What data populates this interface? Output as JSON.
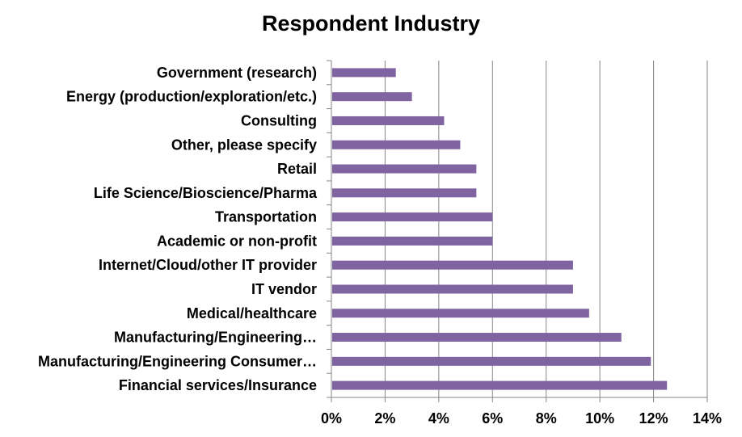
{
  "chart_data": {
    "type": "bar",
    "orientation": "horizontal",
    "title": "Respondent Industry",
    "xlabel": "",
    "ylabel": "",
    "categories": [
      "Government (research)",
      "Energy (production/exploration/etc.)",
      "Consulting",
      "Other, please specify",
      "Retail",
      "Life Science/Bioscience/Pharma",
      "Transportation",
      "Academic or non-profit",
      "Internet/Cloud/other IT provider",
      "IT vendor",
      "Medical/healthcare",
      "Manufacturing/Engineering…",
      "Manufacturing/Engineering Consumer…",
      "Financial services/Insurance"
    ],
    "values": [
      2.4,
      3.0,
      4.2,
      4.8,
      5.4,
      5.4,
      6.0,
      6.0,
      9.0,
      9.0,
      9.6,
      10.8,
      11.9,
      12.5
    ],
    "xlim": [
      0,
      14
    ],
    "xticks": [
      "0%",
      "2%",
      "4%",
      "6%",
      "8%",
      "10%",
      "12%",
      "14%"
    ],
    "grid": "vertical",
    "legend": "none",
    "bar_color": "#8064A2"
  }
}
